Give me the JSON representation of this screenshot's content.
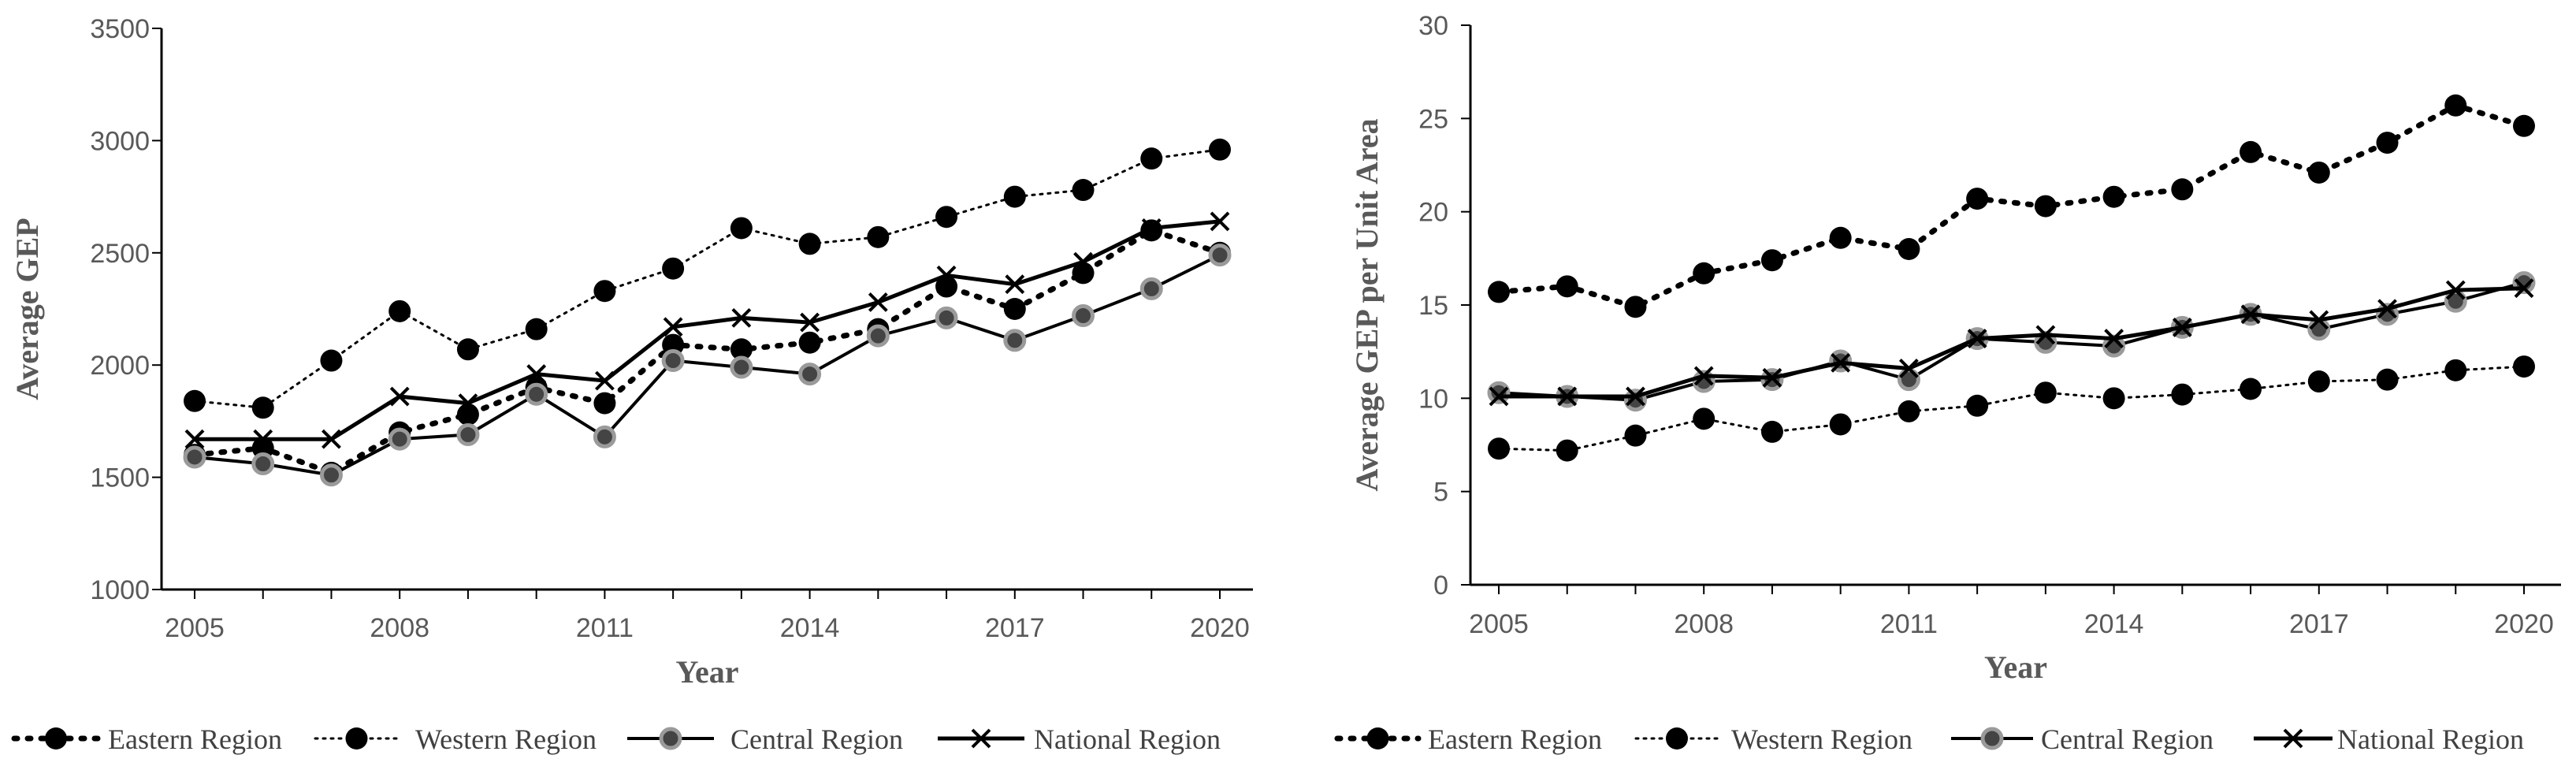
{
  "chart_data": [
    {
      "type": "line",
      "title": "",
      "xlabel": "Year",
      "ylabel": "Average GEP",
      "ylim": [
        1000,
        3500
      ],
      "yticks": [
        1000,
        1500,
        2000,
        2500,
        3000,
        3500
      ],
      "xticks": [
        2005,
        2008,
        2011,
        2014,
        2017,
        2020
      ],
      "x": [
        2005,
        2006,
        2007,
        2008,
        2009,
        2010,
        2011,
        2012,
        2013,
        2014,
        2015,
        2016,
        2017,
        2018,
        2019,
        2020
      ],
      "legend_position": "bottom",
      "series": [
        {
          "name": "Eastern Region",
          "values": [
            1600,
            1630,
            1520,
            1700,
            1780,
            1900,
            1830,
            2090,
            2070,
            2100,
            2160,
            2350,
            2250,
            2410,
            2600,
            2500
          ]
        },
        {
          "name": "Western Region",
          "values": [
            1840,
            1810,
            2020,
            2240,
            2070,
            2160,
            2330,
            2430,
            2610,
            2540,
            2570,
            2660,
            2750,
            2780,
            2920,
            2960
          ]
        },
        {
          "name": "Central Region",
          "values": [
            1590,
            1560,
            1510,
            1670,
            1690,
            1870,
            1680,
            2020,
            1990,
            1960,
            2130,
            2210,
            2110,
            2220,
            2340,
            2490
          ]
        },
        {
          "name": "National Region",
          "values": [
            1670,
            1670,
            1670,
            1860,
            1830,
            1960,
            1930,
            2170,
            2210,
            2190,
            2280,
            2400,
            2360,
            2460,
            2610,
            2640
          ]
        }
      ]
    },
    {
      "type": "line",
      "title": "",
      "xlabel": "Year",
      "ylabel": "Average GEP per Unit Area",
      "ylim": [
        0,
        30
      ],
      "yticks": [
        0,
        5,
        10,
        15,
        20,
        25,
        30
      ],
      "xticks": [
        2005,
        2008,
        2011,
        2014,
        2017,
        2020
      ],
      "x": [
        2005,
        2006,
        2007,
        2008,
        2009,
        2010,
        2011,
        2012,
        2013,
        2014,
        2015,
        2016,
        2017,
        2018,
        2019,
        2020
      ],
      "legend_position": "bottom",
      "series": [
        {
          "name": "Eastern Region",
          "values": [
            15.7,
            16.0,
            14.9,
            16.7,
            17.4,
            18.6,
            18.0,
            20.7,
            20.3,
            20.8,
            21.2,
            23.2,
            22.1,
            23.7,
            25.7,
            24.6
          ]
        },
        {
          "name": "Western Region",
          "values": [
            7.3,
            7.2,
            8.0,
            8.9,
            8.2,
            8.6,
            9.3,
            9.6,
            10.3,
            10.0,
            10.2,
            10.5,
            10.9,
            11.0,
            11.5,
            11.7
          ]
        },
        {
          "name": "Central Region",
          "values": [
            10.3,
            10.1,
            9.9,
            10.9,
            11.0,
            12.0,
            11.0,
            13.2,
            13.0,
            12.8,
            13.8,
            14.5,
            13.7,
            14.5,
            15.2,
            16.2
          ]
        },
        {
          "name": "National Region",
          "values": [
            10.1,
            10.1,
            10.1,
            11.2,
            11.1,
            11.9,
            11.6,
            13.2,
            13.4,
            13.2,
            13.8,
            14.5,
            14.2,
            14.8,
            15.8,
            15.9
          ]
        }
      ]
    }
  ]
}
